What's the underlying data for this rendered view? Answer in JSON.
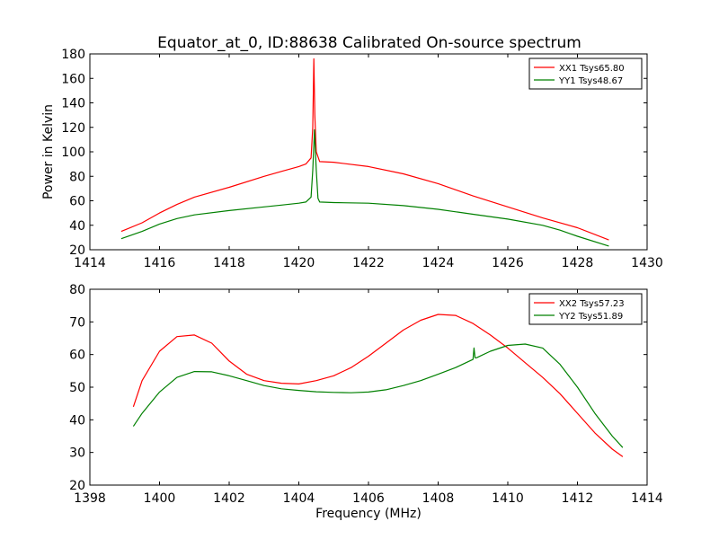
{
  "figure": {
    "title": "Equator_at_0, ID:88638 Calibrated On-source spectrum"
  },
  "chart_data": [
    {
      "type": "line",
      "title": "Equator_at_0, ID:88638 Calibrated On-source spectrum",
      "xlabel": "",
      "ylabel": "Power in Kelvin",
      "xlim": [
        1414,
        1430
      ],
      "ylim": [
        20,
        180
      ],
      "xticks": [
        1414,
        1416,
        1418,
        1420,
        1422,
        1424,
        1426,
        1428,
        1430
      ],
      "yticks": [
        20,
        40,
        60,
        80,
        100,
        120,
        140,
        160,
        180
      ],
      "grid": false,
      "legend_position": "top-right",
      "series": [
        {
          "name": "XX1 Tsys65.80",
          "color": "#ff0000",
          "x": [
            1414.9,
            1415.5,
            1416.0,
            1416.5,
            1417.0,
            1418.0,
            1419.0,
            1419.5,
            1420.0,
            1420.2,
            1420.35,
            1420.4,
            1420.43,
            1420.46,
            1420.5,
            1420.6,
            1421.0,
            1422.0,
            1423.0,
            1424.0,
            1425.0,
            1426.0,
            1427.0,
            1428.0,
            1428.9
          ],
          "y": [
            35,
            42,
            50,
            57,
            63,
            71,
            80,
            84,
            88,
            90,
            95,
            120,
            176,
            130,
            100,
            92,
            91.5,
            88,
            82,
            74,
            64,
            55,
            46,
            38,
            28
          ]
        },
        {
          "name": "YY1 Tsys48.67",
          "color": "#008000",
          "x": [
            1414.9,
            1415.5,
            1416.0,
            1416.5,
            1417.0,
            1418.0,
            1419.0,
            1419.5,
            1420.0,
            1420.2,
            1420.35,
            1420.4,
            1420.45,
            1420.5,
            1420.55,
            1420.6,
            1421.0,
            1422.0,
            1423.0,
            1424.0,
            1425.0,
            1426.0,
            1427.0,
            1427.5,
            1428.0,
            1428.9
          ],
          "y": [
            29,
            35,
            41,
            45.5,
            48.5,
            52,
            55,
            56.5,
            58,
            59,
            63,
            85,
            118,
            85,
            62,
            59,
            58.5,
            58,
            56,
            53,
            49,
            45,
            40,
            36,
            31,
            23
          ]
        }
      ]
    },
    {
      "type": "line",
      "title": "",
      "xlabel": "Frequency (MHz)",
      "ylabel": "",
      "xlim": [
        1398,
        1414
      ],
      "ylim": [
        20,
        80
      ],
      "xticks": [
        1398,
        1400,
        1402,
        1404,
        1406,
        1408,
        1410,
        1412,
        1414
      ],
      "yticks": [
        20,
        30,
        40,
        50,
        60,
        70,
        80
      ],
      "grid": false,
      "legend_position": "top-right",
      "series": [
        {
          "name": "XX2 Tsys57.23",
          "color": "#ff0000",
          "x": [
            1399.25,
            1399.5,
            1400.0,
            1400.5,
            1401.0,
            1401.5,
            1402.0,
            1402.5,
            1403.0,
            1403.5,
            1404.0,
            1404.5,
            1405.0,
            1405.5,
            1406.0,
            1406.5,
            1407.0,
            1407.5,
            1408.0,
            1408.5,
            1409.0,
            1409.5,
            1410.0,
            1410.5,
            1411.0,
            1411.5,
            1412.0,
            1412.5,
            1413.0,
            1413.3
          ],
          "y": [
            44,
            52,
            61,
            65.5,
            66,
            63.5,
            58,
            54,
            52,
            51.2,
            51,
            52,
            53.5,
            56,
            59.5,
            63.5,
            67.5,
            70.5,
            72.3,
            72,
            69.5,
            66,
            62,
            57.5,
            53,
            48,
            42,
            36,
            31,
            28.7
          ]
        },
        {
          "name": "YY2 Tsys51.89",
          "color": "#008000",
          "x": [
            1399.25,
            1399.5,
            1400.0,
            1400.5,
            1401.0,
            1401.5,
            1402.0,
            1402.5,
            1403.0,
            1403.5,
            1404.0,
            1404.5,
            1405.0,
            1405.5,
            1406.0,
            1406.5,
            1407.0,
            1407.5,
            1408.0,
            1408.5,
            1409.0,
            1409.03,
            1409.06,
            1409.1,
            1409.5,
            1410.0,
            1410.5,
            1411.0,
            1411.5,
            1412.0,
            1412.5,
            1413.0,
            1413.3
          ],
          "y": [
            38,
            42,
            48.5,
            53,
            54.8,
            54.7,
            53.5,
            52,
            50.5,
            49.5,
            49,
            48.6,
            48.4,
            48.3,
            48.5,
            49.2,
            50.5,
            52,
            54,
            56,
            58.5,
            62,
            59,
            59,
            61,
            62.8,
            63.2,
            62,
            57,
            50,
            42,
            35,
            31.5
          ]
        }
      ]
    }
  ]
}
